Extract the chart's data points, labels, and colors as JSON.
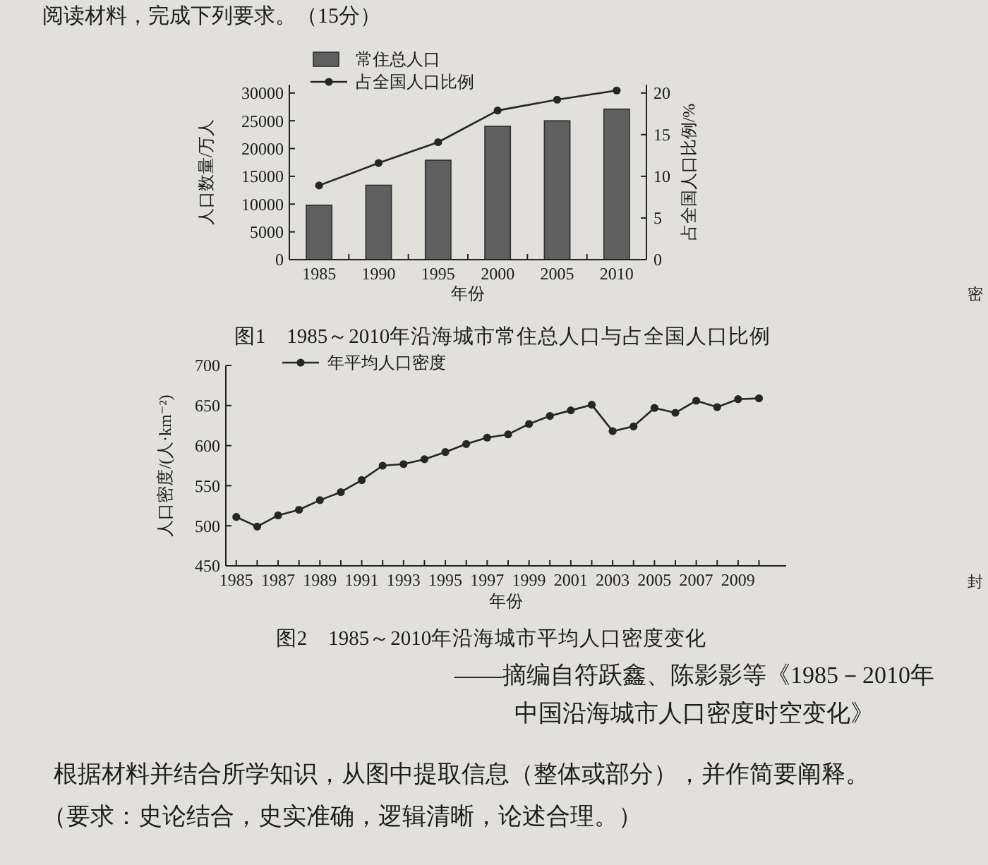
{
  "chart_data": [
    {
      "type": "bar",
      "title": "图1　1985～2010年沿海城市常住总人口与占全国人口比例",
      "xlabel": "年份",
      "ylabel": "人口数量/万人",
      "y2label": "占全国人口比例/%",
      "categories": [
        "1985",
        "1990",
        "1995",
        "2000",
        "2005",
        "2010"
      ],
      "series": [
        {
          "name": "常住总人口",
          "color": "#5f5f5f",
          "values": [
            9800,
            13400,
            17900,
            24000,
            25000,
            27100
          ]
        },
        {
          "name": "占全国人口比例",
          "type": "line",
          "axis": "y2",
          "color": "#262626",
          "values": [
            8.9,
            11.6,
            14.1,
            17.9,
            19.2,
            20.3
          ]
        }
      ],
      "ylim": [
        0,
        31500
      ],
      "yticks": [
        0,
        5000,
        10000,
        15000,
        20000,
        25000,
        30000
      ],
      "y2lim": [
        0,
        21
      ],
      "y2ticks": [
        0,
        5,
        10,
        15,
        20
      ],
      "marker": "circle",
      "legend": "top left",
      "annotations": [
        "阅读材料，完成下列要求。（15分）",
        "密"
      ]
    },
    {
      "type": "line",
      "title": "图2　1985～2010年沿海城市平均人口密度变化",
      "xlabel": "年份",
      "ylabel": "人口密度/(人·km⁻²)",
      "x": [
        1985,
        1986,
        1987,
        1988,
        1989,
        1990,
        1991,
        1992,
        1993,
        1994,
        1995,
        1996,
        1997,
        1998,
        1999,
        2000,
        2001,
        2002,
        2003,
        2004,
        2005,
        2006,
        2007,
        2008,
        2009,
        2010
      ],
      "series": [
        {
          "name": "年平均人口密度",
          "color": "#262626",
          "values": [
            511,
            499,
            513,
            520,
            532,
            542,
            557,
            575,
            577,
            583,
            592,
            602,
            610,
            614,
            627,
            637,
            644,
            651,
            618,
            624,
            647,
            641,
            656,
            648,
            658,
            659
          ]
        }
      ],
      "xlim": [
        1984.5,
        2011.3
      ],
      "xticks": [
        1985,
        {
          "value": 1986,
          "label": null
        },
        1987,
        {
          "value": 1988,
          "label": null
        },
        1989,
        {
          "value": 1990,
          "label": null
        },
        1991,
        {
          "value": 1992,
          "label": null
        },
        1993,
        {
          "value": 1994,
          "label": null
        },
        1995,
        {
          "value": 1996,
          "label": null
        },
        1997,
        {
          "value": 1998,
          "label": null
        },
        1999,
        {
          "value": 2000,
          "label": null
        },
        2001,
        {
          "value": 2002,
          "label": null
        },
        2003,
        {
          "value": 2004,
          "label": null
        },
        2005,
        {
          "value": 2006,
          "label": null
        },
        2007,
        {
          "value": 2008,
          "label": null
        },
        2009,
        {
          "value": 2010,
          "label": null
        }
      ],
      "ylim": [
        450,
        700
      ],
      "yticks": [
        450,
        500,
        550,
        600,
        650,
        700
      ],
      "marker": "circle",
      "legend": "top left",
      "annotations": [
        "——摘编自符跃鑫、陈影影等《1985－2010年中国沿海城市人口密度时空变化》",
        "根据材料并结合所学知识，从图中提取信息（整体或部分），并作简要阐释。",
        "（要求：史论结合，史实准确，逻辑清晰，论述合理。）",
        "封"
      ]
    }
  ]
}
